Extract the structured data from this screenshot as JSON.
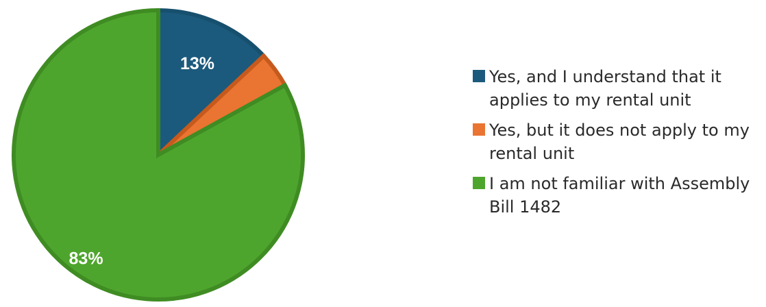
{
  "chart_data": {
    "type": "pie",
    "title": "",
    "slices": [
      {
        "label": "Yes, and I understand that it applies to my rental unit",
        "value": 13,
        "display": "13%",
        "color": "#1b5a7c",
        "border": "#17506e"
      },
      {
        "label": "Yes, but it does not apply to my rental unit",
        "value": 4,
        "display": "",
        "color": "#ea7431",
        "border": "#c65a1d"
      },
      {
        "label": "I am not familiar with Assembly Bill 1482",
        "value": 83,
        "display": "83%",
        "color": "#4ea52d",
        "border": "#3f8c23"
      }
    ],
    "legend_position": "right"
  }
}
